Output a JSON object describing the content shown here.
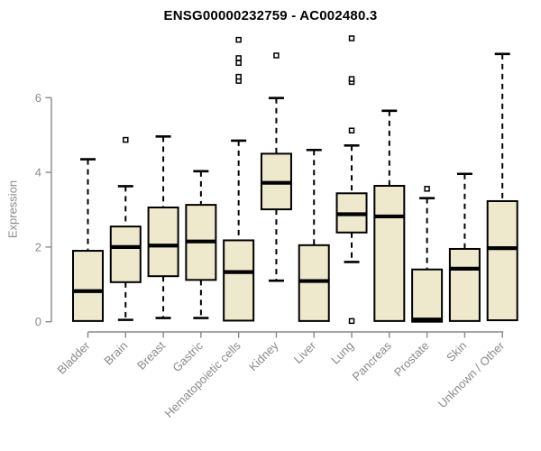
{
  "chart_data": {
    "type": "box",
    "title": "ENSG00000232759 - AC002480.3",
    "ylabel": "Expression",
    "xlabel": "",
    "ylim": [
      0,
      7.8
    ],
    "yticks": [
      0,
      2,
      4,
      6
    ],
    "grid": false,
    "legend": "none",
    "colors": {
      "box_fill": "#EEE8CD",
      "box_stroke": "#000000",
      "median": "#000000",
      "whisker": "#000000",
      "axis": "#888888",
      "tick_label": "#8a8a8a",
      "outlier_fill": "#ffffff",
      "background": "#ffffff"
    },
    "categories": [
      "Bladder",
      "Brain",
      "Breast",
      "Gastric",
      "Hematopoietic cells",
      "Kidney",
      "Liver",
      "Lung",
      "Pancreas",
      "Prostate",
      "Skin",
      "Unknown / Other"
    ],
    "boxes": [
      {
        "label": "Bladder",
        "low": 0.02,
        "q1": 0.02,
        "median": 0.82,
        "q3": 1.9,
        "high": 4.35,
        "outliers": []
      },
      {
        "label": "Brain",
        "low": 0.05,
        "q1": 1.06,
        "median": 2.0,
        "q3": 2.55,
        "high": 3.63,
        "outliers": [
          4.87
        ]
      },
      {
        "label": "Breast",
        "low": 0.1,
        "q1": 1.22,
        "median": 2.04,
        "q3": 3.06,
        "high": 4.96,
        "outliers": []
      },
      {
        "label": "Gastric",
        "low": 0.1,
        "q1": 1.12,
        "median": 2.15,
        "q3": 3.13,
        "high": 4.03,
        "outliers": []
      },
      {
        "label": "Hematopoietic cells",
        "low": 0.03,
        "q1": 0.03,
        "median": 1.33,
        "q3": 2.18,
        "high": 4.85,
        "outliers": [
          6.45,
          6.56,
          6.93,
          7.06,
          7.55
        ]
      },
      {
        "label": "Kidney",
        "low": 1.1,
        "q1": 3.01,
        "median": 3.72,
        "q3": 4.5,
        "high": 5.99,
        "outliers": [
          7.13
        ]
      },
      {
        "label": "Liver",
        "low": 0.02,
        "q1": 0.02,
        "median": 1.09,
        "q3": 2.05,
        "high": 4.6,
        "outliers": []
      },
      {
        "label": "Lung",
        "low": 1.6,
        "q1": 2.39,
        "median": 2.88,
        "q3": 3.44,
        "high": 4.72,
        "outliers": [
          0.02,
          5.12,
          6.42,
          6.5,
          7.59
        ]
      },
      {
        "label": "Pancreas",
        "low": 0.02,
        "q1": 0.02,
        "median": 2.82,
        "q3": 3.64,
        "high": 5.65,
        "outliers": []
      },
      {
        "label": "Prostate",
        "low": 0.0,
        "q1": 0.0,
        "median": 0.06,
        "q3": 1.4,
        "high": 3.31,
        "outliers": [
          3.56
        ]
      },
      {
        "label": "Skin",
        "low": 0.02,
        "q1": 0.02,
        "median": 1.42,
        "q3": 1.95,
        "high": 3.96,
        "outliers": []
      },
      {
        "label": "Unknown / Other",
        "low": 0.04,
        "q1": 0.04,
        "median": 1.97,
        "q3": 3.23,
        "high": 7.17,
        "outliers": []
      }
    ]
  }
}
